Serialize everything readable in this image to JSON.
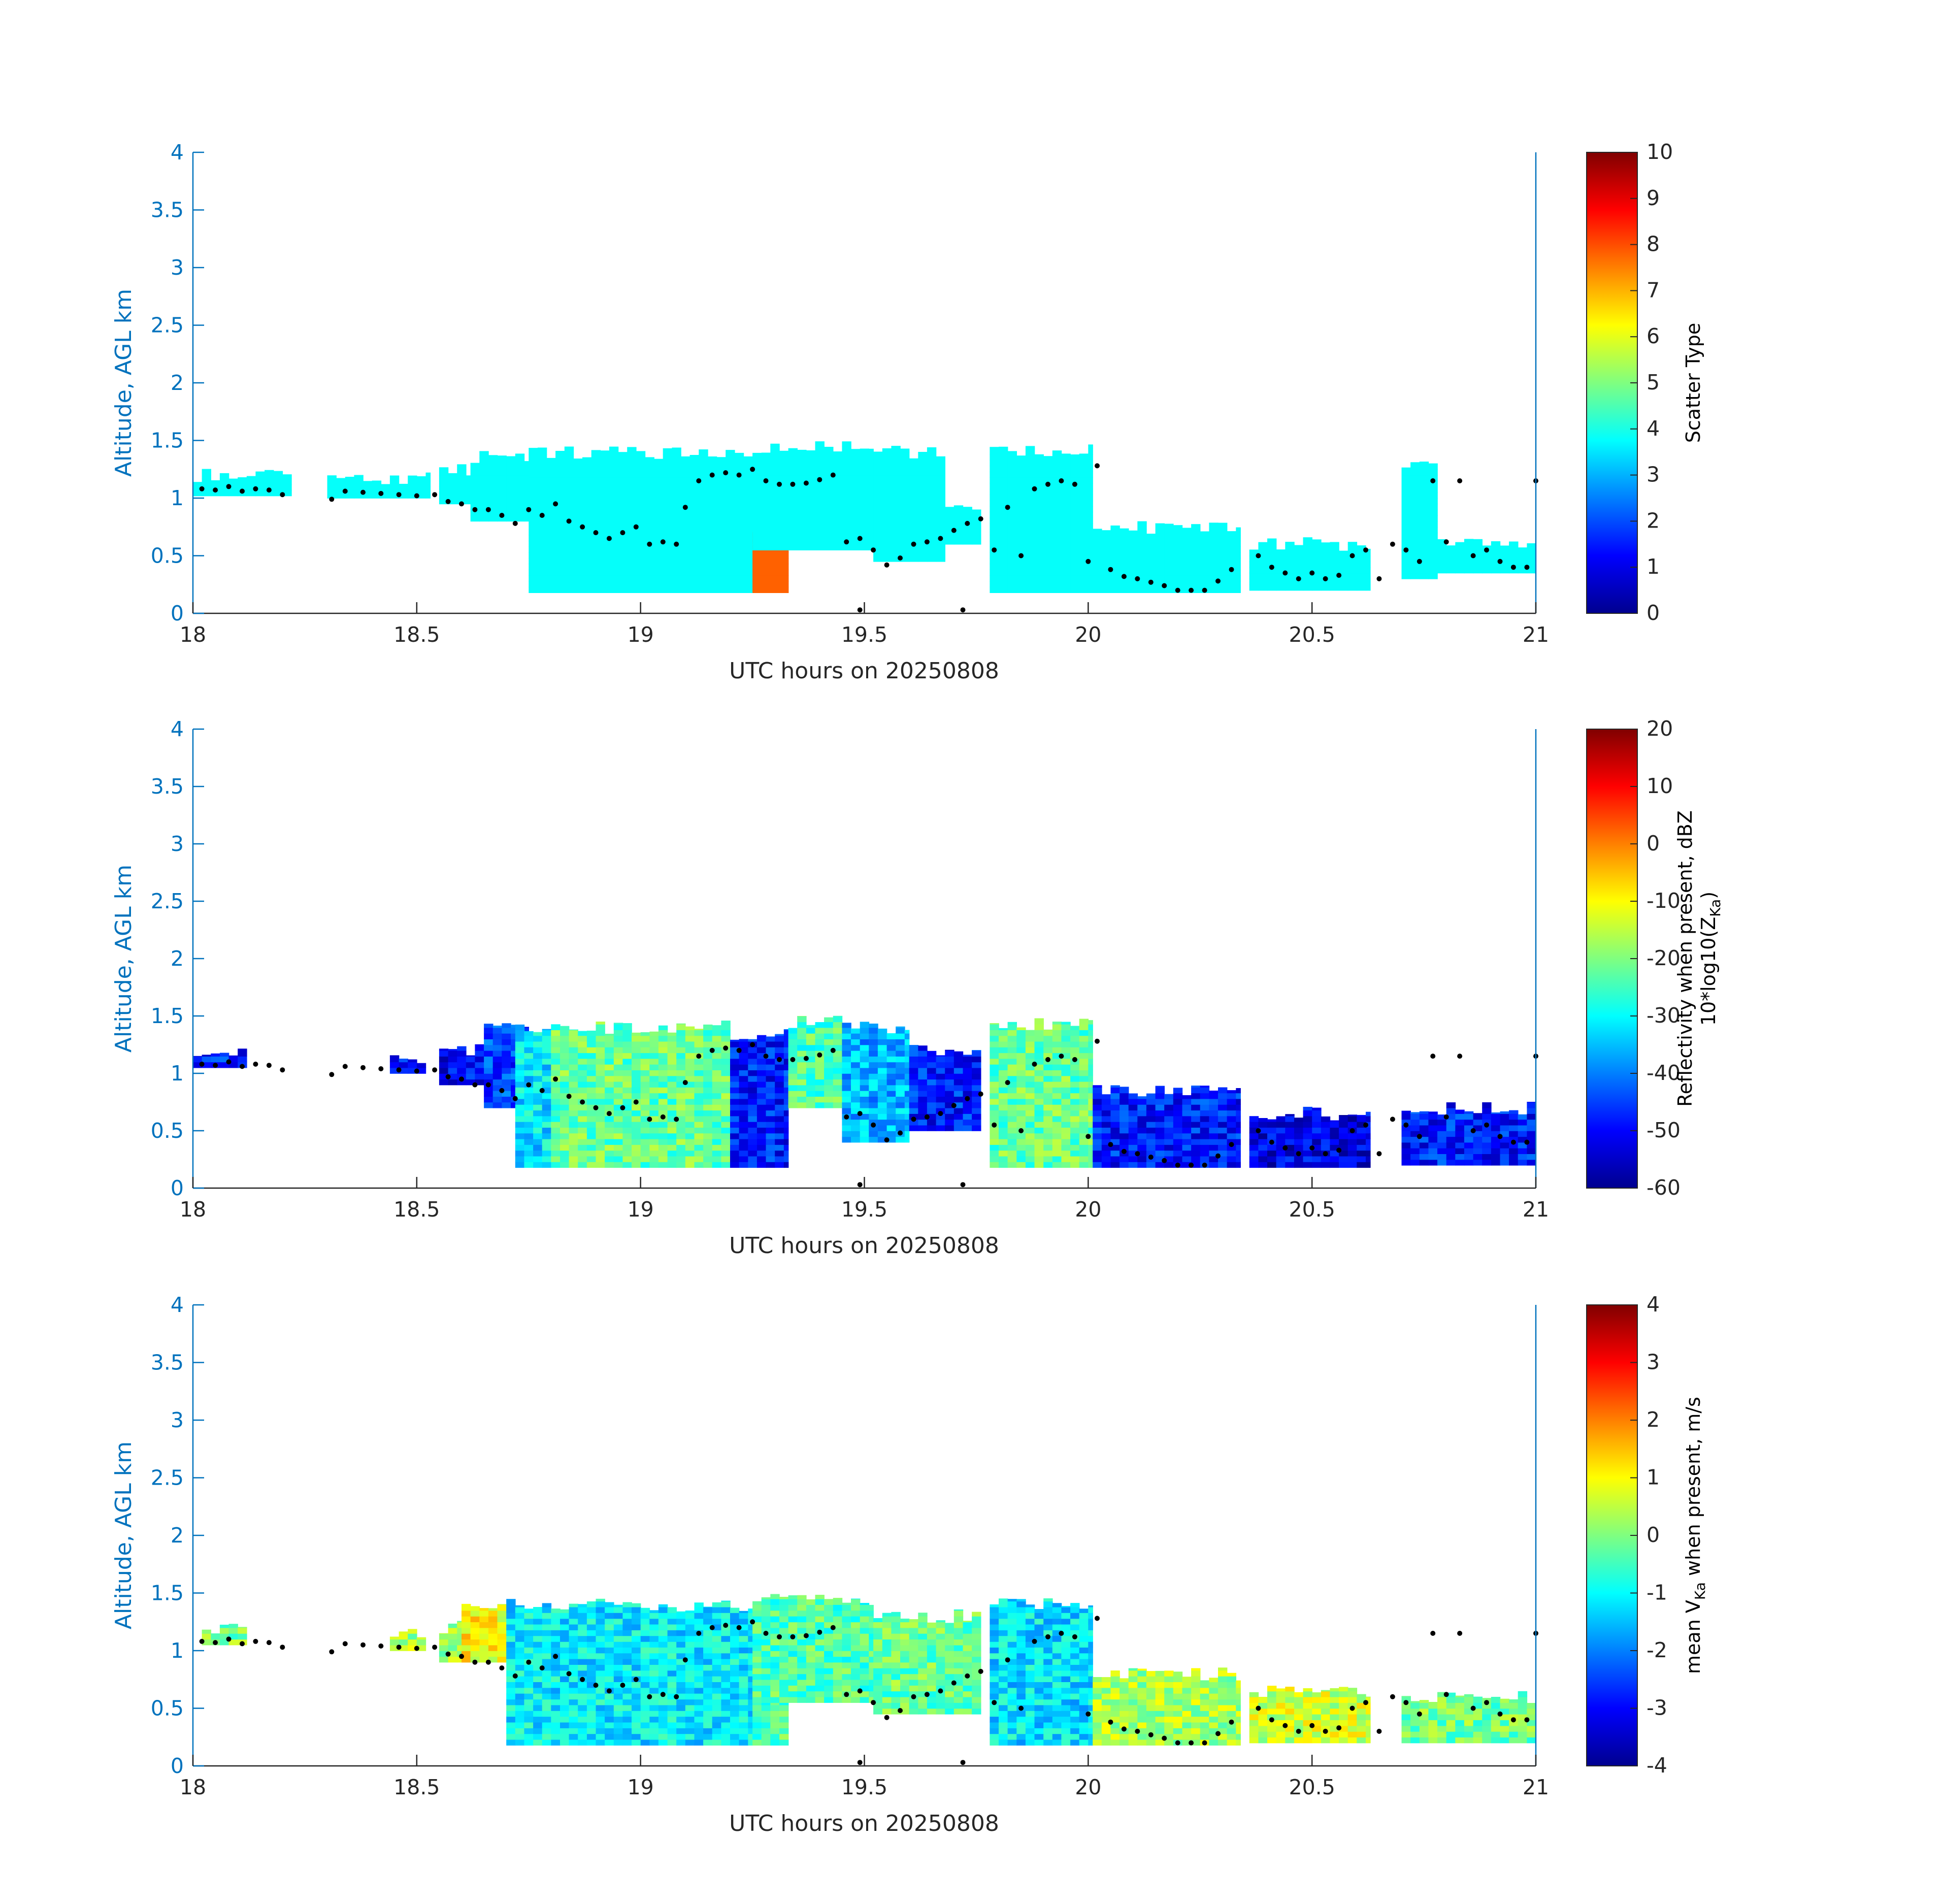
{
  "chart_data": [
    {
      "type": "heatmap",
      "panel": "scatter-type",
      "xlabel": "UTC hours on 20250808",
      "ylabel": "Altitude, AGL km",
      "xlim": [
        18,
        21
      ],
      "ylim": [
        0,
        4
      ],
      "xticks": [
        "18",
        "18.5",
        "19",
        "19.5",
        "20",
        "20.5",
        "21"
      ],
      "yticks": [
        "0",
        "0.5",
        "1",
        "1.5",
        "2",
        "2.5",
        "3",
        "3.5",
        "4"
      ],
      "colorbar": {
        "label": "Scatter Type",
        "range": [
          0,
          10
        ],
        "ticks": [
          "0",
          "1",
          "2",
          "3",
          "4",
          "5",
          "6",
          "7",
          "8",
          "9",
          "10"
        ]
      },
      "colormap": "jet",
      "segments": [
        {
          "t0": 18.0,
          "t1": 18.22,
          "bottom": 1.02,
          "top": 1.2,
          "value": 3.8
        },
        {
          "t0": 18.3,
          "t1": 18.53,
          "bottom": 1.0,
          "top": 1.18,
          "value": 3.8
        },
        {
          "t0": 18.55,
          "t1": 18.62,
          "bottom": 0.95,
          "top": 1.25,
          "value": 3.8
        },
        {
          "t0": 18.62,
          "t1": 18.75,
          "bottom": 0.8,
          "top": 1.35,
          "value": 3.8
        },
        {
          "t0": 18.75,
          "t1": 19.25,
          "bottom": 0.18,
          "top": 1.4,
          "value": 3.8
        },
        {
          "t0": 19.25,
          "t1": 19.33,
          "bottom": 0.18,
          "top": 0.7,
          "value": 7.8
        },
        {
          "t0": 19.25,
          "t1": 19.52,
          "bottom": 0.55,
          "top": 1.45,
          "value": 3.8
        },
        {
          "t0": 19.52,
          "t1": 19.68,
          "bottom": 0.45,
          "top": 1.4,
          "value": 3.8
        },
        {
          "t0": 19.68,
          "t1": 19.76,
          "bottom": 0.6,
          "top": 0.9,
          "value": 3.8
        },
        {
          "t0": 19.78,
          "t1": 20.01,
          "bottom": 0.18,
          "top": 1.42,
          "value": 3.8
        },
        {
          "t0": 20.01,
          "t1": 20.34,
          "bottom": 0.18,
          "top": 0.75,
          "value": 3.8
        },
        {
          "t0": 20.36,
          "t1": 20.63,
          "bottom": 0.2,
          "top": 0.6,
          "value": 3.8
        },
        {
          "t0": 20.7,
          "t1": 20.78,
          "bottom": 0.3,
          "top": 1.3,
          "value": 3.8
        },
        {
          "t0": 20.78,
          "t1": 21.0,
          "bottom": 0.35,
          "top": 0.6,
          "value": 3.8
        }
      ]
    },
    {
      "type": "heatmap",
      "panel": "reflectivity",
      "xlabel": "UTC hours on 20250808",
      "ylabel": "Altitude, AGL km",
      "xlim": [
        18,
        21
      ],
      "ylim": [
        0,
        4
      ],
      "xticks": [
        "18",
        "18.5",
        "19",
        "19.5",
        "20",
        "20.5",
        "21"
      ],
      "yticks": [
        "0",
        "0.5",
        "1",
        "1.5",
        "2",
        "2.5",
        "3",
        "3.5",
        "4"
      ],
      "colorbar": {
        "label_line1": "Reflectivity when present, dBZ",
        "label_line2_prefix": "10*log10(Z",
        "label_line2_sub": "Ka",
        "label_line2_suffix": ")",
        "range": [
          -60,
          20
        ],
        "ticks": [
          "-60",
          "-50",
          "-40",
          "-30",
          "-20",
          "-10",
          "0",
          "10",
          "20"
        ]
      },
      "colormap": "jet",
      "segments": [
        {
          "t0": 18.0,
          "t1": 18.12,
          "bottom": 1.05,
          "top": 1.2,
          "value": -48
        },
        {
          "t0": 18.44,
          "t1": 18.52,
          "bottom": 1.0,
          "top": 1.15,
          "value": -50
        },
        {
          "t0": 18.55,
          "t1": 18.65,
          "bottom": 0.9,
          "top": 1.2,
          "value": -50
        },
        {
          "t0": 18.65,
          "t1": 18.75,
          "bottom": 0.7,
          "top": 1.4,
          "value": -45
        },
        {
          "t0": 18.72,
          "t1": 18.8,
          "bottom": 0.18,
          "top": 1.4,
          "value": -32
        },
        {
          "t0": 18.8,
          "t1": 19.2,
          "bottom": 0.18,
          "top": 1.4,
          "value": -22
        },
        {
          "t0": 19.2,
          "t1": 19.33,
          "bottom": 0.18,
          "top": 1.35,
          "value": -48
        },
        {
          "t0": 19.33,
          "t1": 19.45,
          "bottom": 0.7,
          "top": 1.45,
          "value": -24
        },
        {
          "t0": 19.45,
          "t1": 19.6,
          "bottom": 0.4,
          "top": 1.4,
          "value": -36
        },
        {
          "t0": 19.6,
          "t1": 19.76,
          "bottom": 0.5,
          "top": 1.2,
          "value": -48
        },
        {
          "t0": 19.78,
          "t1": 20.01,
          "bottom": 0.18,
          "top": 1.42,
          "value": -22
        },
        {
          "t0": 20.01,
          "t1": 20.34,
          "bottom": 0.18,
          "top": 0.85,
          "value": -48
        },
        {
          "t0": 20.36,
          "t1": 20.63,
          "bottom": 0.18,
          "top": 0.65,
          "value": -52
        },
        {
          "t0": 20.7,
          "t1": 21.0,
          "bottom": 0.2,
          "top": 0.7,
          "value": -48
        }
      ]
    },
    {
      "type": "heatmap",
      "panel": "mean-velocity",
      "xlabel": "UTC hours on 20250808",
      "ylabel": "Altitude, AGL km",
      "xlim": [
        18,
        21
      ],
      "ylim": [
        0,
        4
      ],
      "xticks": [
        "18",
        "18.5",
        "19",
        "19.5",
        "20",
        "20.5",
        "21"
      ],
      "yticks": [
        "0",
        "0.5",
        "1",
        "1.5",
        "2",
        "2.5",
        "3",
        "3.5",
        "4"
      ],
      "colorbar": {
        "label_prefix": "mean V",
        "label_sub": "Ka",
        "label_suffix": " when present, m/s",
        "range": [
          -4,
          4
        ],
        "ticks": [
          "-4",
          "-3",
          "-2",
          "-1",
          "0",
          "1",
          "2",
          "3",
          "4"
        ]
      },
      "colormap": "jet",
      "segments": [
        {
          "t0": 18.02,
          "t1": 18.12,
          "bottom": 1.05,
          "top": 1.2,
          "value": 0.0
        },
        {
          "t0": 18.44,
          "t1": 18.52,
          "bottom": 1.0,
          "top": 1.15,
          "value": 0.3
        },
        {
          "t0": 18.55,
          "t1": 18.62,
          "bottom": 0.9,
          "top": 1.2,
          "value": 0.2
        },
        {
          "t0": 18.6,
          "t1": 18.7,
          "bottom": 0.9,
          "top": 1.35,
          "value": 1.0
        },
        {
          "t0": 18.7,
          "t1": 19.25,
          "bottom": 0.18,
          "top": 1.4,
          "value": -1.1
        },
        {
          "t0": 19.25,
          "t1": 19.33,
          "bottom": 0.18,
          "top": 0.8,
          "value": -0.3
        },
        {
          "t0": 19.25,
          "t1": 19.52,
          "bottom": 0.55,
          "top": 1.45,
          "value": -0.4
        },
        {
          "t0": 19.52,
          "t1": 19.76,
          "bottom": 0.45,
          "top": 1.3,
          "value": -0.2
        },
        {
          "t0": 19.78,
          "t1": 20.01,
          "bottom": 0.18,
          "top": 1.42,
          "value": -1.2
        },
        {
          "t0": 20.01,
          "t1": 20.34,
          "bottom": 0.18,
          "top": 0.8,
          "value": 0.3
        },
        {
          "t0": 20.36,
          "t1": 20.63,
          "bottom": 0.2,
          "top": 0.65,
          "value": 0.6
        },
        {
          "t0": 20.7,
          "t1": 21.0,
          "bottom": 0.2,
          "top": 0.6,
          "value": -0.1
        }
      ]
    }
  ],
  "overlay_points": [
    [
      18.02,
      1.08
    ],
    [
      18.05,
      1.07
    ],
    [
      18.08,
      1.1
    ],
    [
      18.11,
      1.06
    ],
    [
      18.14,
      1.08
    ],
    [
      18.17,
      1.07
    ],
    [
      18.2,
      1.03
    ],
    [
      18.31,
      0.99
    ],
    [
      18.34,
      1.06
    ],
    [
      18.38,
      1.05
    ],
    [
      18.42,
      1.04
    ],
    [
      18.46,
      1.03
    ],
    [
      18.5,
      1.02
    ],
    [
      18.54,
      1.03
    ],
    [
      18.57,
      0.97
    ],
    [
      18.6,
      0.95
    ],
    [
      18.63,
      0.9
    ],
    [
      18.66,
      0.9
    ],
    [
      18.69,
      0.85
    ],
    [
      18.72,
      0.78
    ],
    [
      18.75,
      0.9
    ],
    [
      18.78,
      0.85
    ],
    [
      18.81,
      0.95
    ],
    [
      18.84,
      0.8
    ],
    [
      18.87,
      0.75
    ],
    [
      18.9,
      0.7
    ],
    [
      18.93,
      0.65
    ],
    [
      18.96,
      0.7
    ],
    [
      18.99,
      0.75
    ],
    [
      19.02,
      0.6
    ],
    [
      19.05,
      0.62
    ],
    [
      19.08,
      0.6
    ],
    [
      19.1,
      0.92
    ],
    [
      19.13,
      1.15
    ],
    [
      19.16,
      1.2
    ],
    [
      19.19,
      1.22
    ],
    [
      19.22,
      1.2
    ],
    [
      19.25,
      1.25
    ],
    [
      19.28,
      1.15
    ],
    [
      19.31,
      1.12
    ],
    [
      19.34,
      1.12
    ],
    [
      19.37,
      1.13
    ],
    [
      19.4,
      1.16
    ],
    [
      19.43,
      1.2
    ],
    [
      19.46,
      0.62
    ],
    [
      19.49,
      0.65
    ],
    [
      19.52,
      0.55
    ],
    [
      19.55,
      0.42
    ],
    [
      19.58,
      0.48
    ],
    [
      19.61,
      0.6
    ],
    [
      19.64,
      0.62
    ],
    [
      19.67,
      0.65
    ],
    [
      19.7,
      0.72
    ],
    [
      19.73,
      0.78
    ],
    [
      19.76,
      0.82
    ],
    [
      19.79,
      0.55
    ],
    [
      19.82,
      0.92
    ],
    [
      19.85,
      0.5
    ],
    [
      19.88,
      1.08
    ],
    [
      19.91,
      1.12
    ],
    [
      19.94,
      1.15
    ],
    [
      19.97,
      1.12
    ],
    [
      20.0,
      0.45
    ],
    [
      20.02,
      1.28
    ],
    [
      20.05,
      0.38
    ],
    [
      20.08,
      0.32
    ],
    [
      20.11,
      0.3
    ],
    [
      20.14,
      0.27
    ],
    [
      20.17,
      0.24
    ],
    [
      20.2,
      0.2
    ],
    [
      20.23,
      0.2
    ],
    [
      20.26,
      0.2
    ],
    [
      20.29,
      0.28
    ],
    [
      20.32,
      0.38
    ],
    [
      20.38,
      0.5
    ],
    [
      20.41,
      0.4
    ],
    [
      20.44,
      0.35
    ],
    [
      20.47,
      0.3
    ],
    [
      20.5,
      0.35
    ],
    [
      20.53,
      0.3
    ],
    [
      20.56,
      0.33
    ],
    [
      20.59,
      0.5
    ],
    [
      20.62,
      0.55
    ],
    [
      20.65,
      0.3
    ],
    [
      20.68,
      0.6
    ],
    [
      20.71,
      0.55
    ],
    [
      20.74,
      0.45
    ],
    [
      20.77,
      1.15
    ],
    [
      20.8,
      0.62
    ],
    [
      20.83,
      1.15
    ],
    [
      20.86,
      0.5
    ],
    [
      20.89,
      0.55
    ],
    [
      20.92,
      0.45
    ],
    [
      20.95,
      0.4
    ],
    [
      20.98,
      0.4
    ],
    [
      21.0,
      1.15
    ],
    [
      19.49,
      0.03
    ],
    [
      19.72,
      0.03
    ]
  ]
}
